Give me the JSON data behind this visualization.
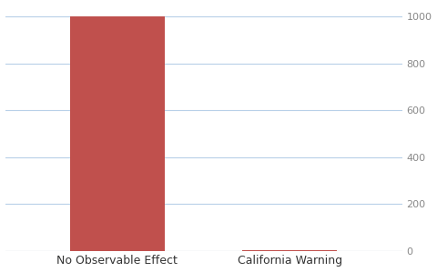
{
  "categories": [
    "No Observable Effect",
    "California Warning"
  ],
  "values": [
    1000,
    2
  ],
  "bar_color": "#c0504d",
  "background_color": "#ffffff",
  "ylim": [
    0,
    1050
  ],
  "yticks": [
    0,
    200,
    400,
    600,
    800,
    1000
  ],
  "grid_color": "#b8d0e8",
  "bar_width": 0.55,
  "figsize": [
    4.8,
    2.99
  ],
  "dpi": 100,
  "tick_label_color": "#888888",
  "xtick_label_color": "#333333",
  "tick_fontsize": 8,
  "xtick_fontsize": 9
}
